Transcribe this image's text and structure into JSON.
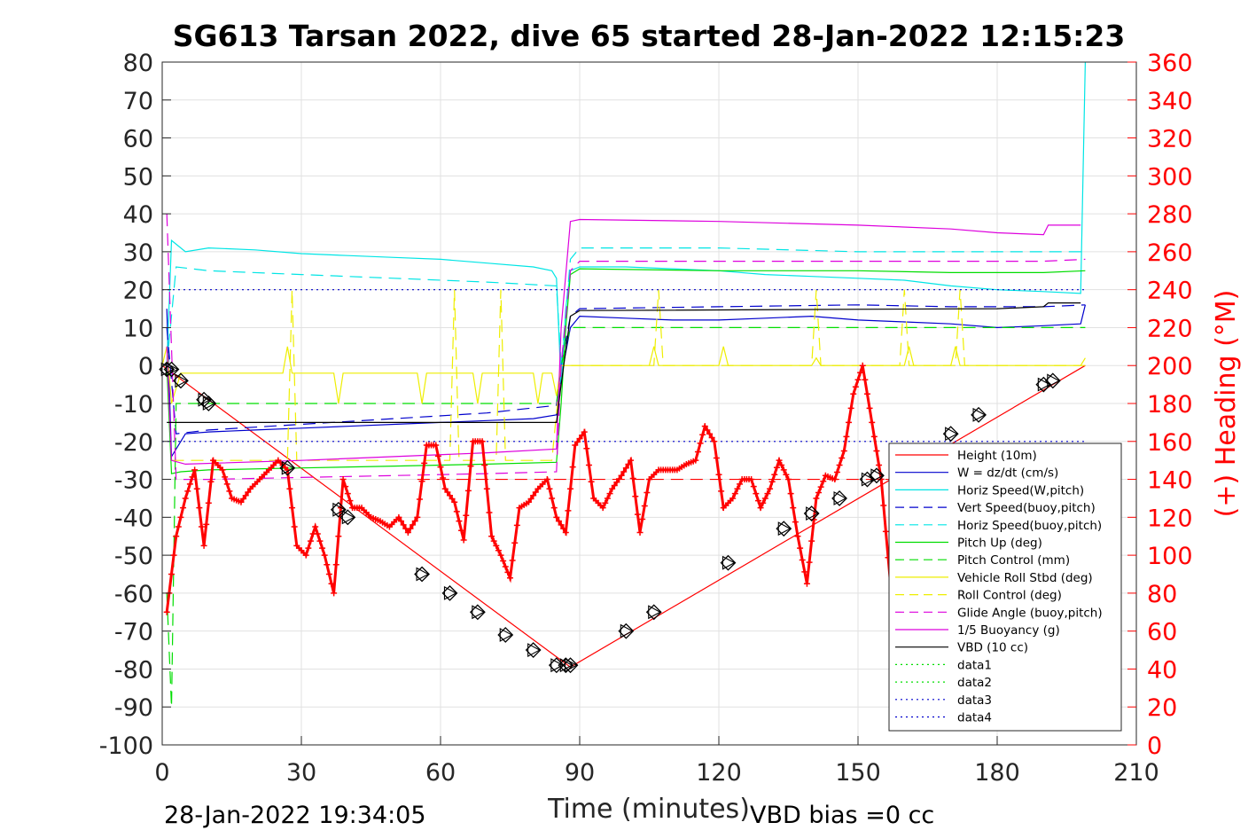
{
  "chart_data": {
    "type": "line",
    "title": "SG613 Tarsan 2022, dive 65 started 28-Jan-2022 12:15:23",
    "xlabel": "Time (minutes)",
    "ylabel_right": "(+) Heading (°M)",
    "xlim": [
      0,
      210
    ],
    "ylim": [
      -100,
      80
    ],
    "ylim_right": [
      0,
      360
    ],
    "x_ticks": [
      "0",
      "30",
      "60",
      "90",
      "120",
      "150",
      "180",
      "210"
    ],
    "y_ticks": [
      "80",
      "70",
      "60",
      "50",
      "40",
      "30",
      "20",
      "10",
      "0",
      "-10",
      "-20",
      "-30",
      "-40",
      "-50",
      "-60",
      "-70",
      "-80",
      "-90",
      "-100"
    ],
    "y_ticks_right": [
      "360",
      "340",
      "320",
      "300",
      "280",
      "260",
      "240",
      "220",
      "200",
      "180",
      "160",
      "140",
      "120",
      "100",
      "80",
      "60",
      "40",
      "20",
      "0"
    ],
    "grid": true,
    "legend_position": "lower-right",
    "footer_left": "28-Jan-2022 19:34:05",
    "footer_right": "VBD bias =0 cc",
    "series": [
      {
        "name": "Height (10m)",
        "color": "#ff0000",
        "style": "solid",
        "x": [
          0,
          88,
          199
        ],
        "y": [
          0,
          -79.5,
          0
        ]
      },
      {
        "name": "W = dz/dt (cm/s)",
        "color": "#0000cd",
        "style": "solid",
        "x": [
          1,
          2,
          5,
          10,
          20,
          30,
          40,
          50,
          60,
          70,
          80,
          85,
          86,
          88,
          90,
          100,
          110,
          120,
          130,
          140,
          150,
          160,
          170,
          180,
          190,
          198,
          199
        ],
        "y": [
          15,
          -24,
          -18,
          -17.5,
          -17,
          -16.5,
          -16,
          -15.5,
          -15,
          -14.5,
          -14,
          -13,
          -3,
          10,
          13,
          12.5,
          12,
          12,
          12.5,
          13,
          12,
          11.5,
          11,
          10,
          10.5,
          11,
          16
        ]
      },
      {
        "name": "Horiz Speed(W,pitch)",
        "color": "#00e5e5",
        "style": "solid",
        "x": [
          1,
          2,
          5,
          10,
          20,
          30,
          40,
          50,
          60,
          70,
          80,
          84,
          85,
          86,
          87,
          88,
          90,
          100,
          110,
          120,
          130,
          140,
          150,
          160,
          170,
          180,
          190,
          198,
          199
        ],
        "y": [
          0,
          33,
          30,
          31,
          30.5,
          29.5,
          29,
          28.5,
          28,
          27,
          26,
          25,
          23,
          -5,
          15,
          25,
          26,
          26,
          25.5,
          25,
          24,
          23.5,
          23,
          22.5,
          21,
          20,
          19.5,
          19,
          80
        ]
      },
      {
        "name": "Vert Speed(buoy,pitch)",
        "color": "#0000cd",
        "style": "dashed",
        "x": [
          1,
          3,
          10,
          30,
          50,
          70,
          85,
          86,
          88,
          90,
          120,
          150,
          170,
          190,
          199
        ],
        "y": [
          10,
          -18,
          -17,
          -15.5,
          -14,
          -12.5,
          -10.5,
          0,
          13,
          15,
          15.5,
          16,
          15.5,
          15.5,
          16
        ]
      },
      {
        "name": "Horiz Speed(buoy,pitch)",
        "color": "#00e5e5",
        "style": "dashed",
        "x": [
          1,
          3,
          10,
          30,
          50,
          70,
          85,
          86,
          88,
          90,
          120,
          150,
          170,
          190,
          199
        ],
        "y": [
          0,
          26,
          25,
          24,
          23,
          22,
          21,
          0,
          28,
          31,
          31,
          30,
          30,
          30,
          30
        ]
      },
      {
        "name": "Pitch Up (deg)",
        "color": "#00dd00",
        "style": "solid",
        "x": [
          1,
          2,
          4,
          10,
          30,
          50,
          70,
          85,
          86,
          87,
          88,
          90,
          120,
          150,
          170,
          190,
          199
        ],
        "y": [
          0,
          -28.5,
          -28,
          -27.5,
          -27,
          -26.5,
          -26,
          -25.5,
          -10,
          10,
          24,
          25.5,
          25,
          25,
          24.5,
          24.5,
          25
        ]
      },
      {
        "name": "Pitch Control (mm)",
        "color": "#00dd00",
        "style": "dashed",
        "x": [
          1,
          2,
          3,
          85,
          86,
          88,
          199
        ],
        "y": [
          -60,
          -90,
          -10,
          -10,
          0,
          10,
          10
        ]
      },
      {
        "name": "Vehicle Roll Stbd (deg)",
        "color": "#eeee00",
        "style": "solid",
        "x": [
          0,
          1,
          2,
          4,
          10,
          26,
          27,
          28,
          37,
          38,
          39,
          55,
          56,
          57,
          67,
          68,
          69,
          80,
          81,
          82,
          84,
          85,
          86,
          90,
          105,
          106,
          107,
          120,
          121,
          122,
          140,
          141,
          142,
          160,
          161,
          162,
          170,
          171,
          172,
          190,
          198,
          199
        ],
        "y": [
          0,
          5,
          -10,
          -2,
          -2,
          -2,
          5,
          -2,
          -2,
          -10,
          -2,
          -2,
          -10,
          -2,
          -2,
          -10,
          -2,
          -2,
          -10,
          -2,
          -2,
          -8,
          0,
          0,
          0,
          5,
          0,
          0,
          5,
          0,
          0,
          2,
          0,
          0,
          5,
          0,
          0,
          5,
          0,
          0,
          0,
          2
        ]
      },
      {
        "name": "Roll Control (deg)",
        "color": "#eeee00",
        "style": "dashed",
        "x": [
          2,
          27,
          28,
          29,
          62,
          63,
          64,
          72,
          73,
          74,
          84,
          86,
          88,
          106,
          107,
          108,
          140,
          141,
          142,
          159,
          160,
          161,
          171,
          172,
          173,
          198,
          199
        ],
        "y": [
          -25,
          -25,
          20,
          -25,
          -25,
          20,
          -25,
          -25,
          20,
          -25,
          -25,
          0,
          0,
          0,
          20,
          0,
          0,
          20,
          0,
          0,
          20,
          0,
          0,
          20,
          0,
          0,
          0
        ]
      },
      {
        "name": "Glide Angle (buoy,pitch)",
        "color": "#dd00dd",
        "style": "dashed",
        "x": [
          1,
          3,
          10,
          30,
          50,
          70,
          85,
          86,
          88,
          90,
          120,
          150,
          170,
          190,
          199
        ],
        "y": [
          40,
          -30,
          -30,
          -29.5,
          -29,
          -28.5,
          -28,
          0,
          25,
          27.5,
          27.5,
          27.5,
          27.5,
          27.5,
          28
        ]
      },
      {
        "name": "1/5 Buoyancy (g)",
        "color": "#dd00dd",
        "style": "solid",
        "x": [
          1,
          2,
          5,
          30,
          50,
          70,
          85,
          86,
          88,
          90,
          120,
          150,
          170,
          180,
          190,
          191,
          198
        ],
        "y": [
          5,
          -25,
          -26,
          -25,
          -24,
          -23,
          -22,
          10,
          38,
          38.5,
          38,
          37,
          36,
          35,
          34.5,
          37,
          37
        ]
      },
      {
        "name": "VBD (10 cc)",
        "color": "#000000",
        "style": "solid",
        "x": [
          1,
          2,
          85,
          86,
          88,
          90,
          180,
          190,
          191,
          198
        ],
        "y": [
          -15,
          -15,
          -15,
          -5,
          13,
          14.5,
          15,
          15.5,
          16.5,
          16.5
        ]
      },
      {
        "name": "data1",
        "color": "#00dd00",
        "style": "dotted",
        "x": [],
        "y": []
      },
      {
        "name": "data2",
        "color": "#00dd00",
        "style": "dotted",
        "x": [],
        "y": []
      },
      {
        "name": "data3",
        "color": "#0000cd",
        "style": "dotted",
        "x": [
          0,
          199
        ],
        "y": [
          20,
          20
        ]
      },
      {
        "name": "data4",
        "color": "#0000cd",
        "style": "dotted",
        "x": [
          0,
          199
        ],
        "y": [
          -20,
          -20
        ]
      }
    ],
    "reference_lines": [
      {
        "color": "#ff0000",
        "style": "dashed",
        "y_right": 140,
        "x": [
          55,
          199
        ]
      }
    ],
    "heading": {
      "color": "#ff0000",
      "marker": "+",
      "axis": "right",
      "x": [
        1,
        3,
        5,
        7,
        9,
        11,
        13,
        15,
        17,
        19,
        21,
        23,
        25,
        27,
        29,
        31,
        33,
        35,
        37,
        39,
        41,
        43,
        45,
        47,
        49,
        51,
        53,
        55,
        57,
        59,
        61,
        63,
        65,
        67,
        69,
        71,
        73,
        75,
        77,
        79,
        81,
        83,
        85,
        87,
        89,
        91,
        93,
        95,
        97,
        99,
        101,
        103,
        105,
        107,
        109,
        111,
        113,
        115,
        117,
        119,
        121,
        123,
        125,
        127,
        129,
        131,
        133,
        135,
        137,
        139,
        141,
        143,
        145,
        147,
        149,
        151,
        153,
        155,
        157
      ],
      "y": [
        70,
        110,
        130,
        145,
        105,
        150,
        145,
        130,
        128,
        135,
        140,
        145,
        150,
        145,
        105,
        100,
        115,
        100,
        80,
        140,
        125,
        125,
        120,
        118,
        115,
        120,
        112,
        120,
        158,
        158,
        135,
        128,
        108,
        160,
        160,
        110,
        100,
        88,
        125,
        128,
        135,
        140,
        120,
        112,
        158,
        165,
        130,
        125,
        135,
        142,
        150,
        112,
        140,
        145,
        145,
        145,
        148,
        150,
        168,
        160,
        125,
        130,
        140,
        140,
        125,
        135,
        150,
        140,
        110,
        85,
        130,
        142,
        140,
        155,
        185,
        200,
        170,
        140,
        85
      ]
    },
    "markers": {
      "color": "#000000",
      "style": "diamond/triangle",
      "x": [
        1,
        2,
        4,
        9,
        10,
        27,
        38,
        40,
        56,
        62,
        68,
        74,
        80,
        85,
        87,
        88,
        100,
        106,
        122,
        134,
        140,
        146,
        152,
        154,
        170,
        176,
        190,
        192
      ],
      "y": [
        -1,
        -1,
        -4,
        -9,
        -10,
        -27,
        -38,
        -40,
        -55,
        -60,
        -65,
        -71,
        -75,
        -79,
        -79,
        -79,
        -70,
        -65,
        -52,
        -43,
        -39,
        -35,
        -30,
        -29,
        -18,
        -13,
        -5,
        -4
      ]
    }
  }
}
